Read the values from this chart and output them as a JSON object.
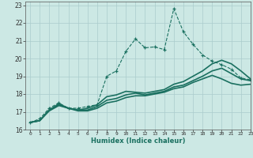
{
  "xlabel": "Humidex (Indice chaleur)",
  "ylabel": "",
  "xlim": [
    -0.5,
    23
  ],
  "ylim": [
    16,
    23.2
  ],
  "yticks": [
    16,
    17,
    18,
    19,
    20,
    21,
    22,
    23
  ],
  "xticks": [
    0,
    1,
    2,
    3,
    4,
    5,
    6,
    7,
    8,
    9,
    10,
    11,
    12,
    13,
    14,
    15,
    16,
    17,
    18,
    19,
    20,
    21,
    22,
    23
  ],
  "bg_color": "#cce8e4",
  "grid_color": "#aacccc",
  "line_color": "#1a7060",
  "lines": [
    {
      "x": [
        0,
        1,
        2,
        3,
        4,
        5,
        6,
        7,
        8,
        9,
        10,
        11,
        12,
        13,
        14,
        15,
        16,
        17,
        18,
        19,
        20,
        21,
        22,
        23
      ],
      "y": [
        16.4,
        16.6,
        17.2,
        17.5,
        17.2,
        17.2,
        17.3,
        17.4,
        19.0,
        19.3,
        20.4,
        21.1,
        20.6,
        20.65,
        20.5,
        22.8,
        21.5,
        20.8,
        20.2,
        19.85,
        19.65,
        19.4,
        18.9,
        18.8
      ],
      "style": "--",
      "marker": "+",
      "lw": 0.8,
      "markersize": 3.5
    },
    {
      "x": [
        0,
        1,
        2,
        3,
        4,
        5,
        6,
        7,
        8,
        9,
        10,
        11,
        12,
        13,
        14,
        15,
        16,
        17,
        18,
        19,
        20,
        21,
        22,
        23
      ],
      "y": [
        16.4,
        16.5,
        17.1,
        17.45,
        17.2,
        17.1,
        17.2,
        17.4,
        17.85,
        17.95,
        18.15,
        18.1,
        18.05,
        18.15,
        18.25,
        18.55,
        18.7,
        19.0,
        19.3,
        19.7,
        19.9,
        19.7,
        19.3,
        18.85
      ],
      "style": "-",
      "marker": null,
      "lw": 1.2,
      "markersize": 0
    },
    {
      "x": [
        0,
        1,
        2,
        3,
        4,
        5,
        6,
        7,
        8,
        9,
        10,
        11,
        12,
        13,
        14,
        15,
        16,
        17,
        18,
        19,
        20,
        21,
        22,
        23
      ],
      "y": [
        16.4,
        16.5,
        17.1,
        17.4,
        17.2,
        17.1,
        17.1,
        17.3,
        17.65,
        17.75,
        17.95,
        18.05,
        17.95,
        18.05,
        18.15,
        18.4,
        18.5,
        18.75,
        19.0,
        19.3,
        19.45,
        19.15,
        18.85,
        18.75
      ],
      "style": "-",
      "marker": null,
      "lw": 1.2,
      "markersize": 0
    },
    {
      "x": [
        0,
        1,
        2,
        3,
        4,
        5,
        6,
        7,
        8,
        9,
        10,
        11,
        12,
        13,
        14,
        15,
        16,
        17,
        18,
        19,
        20,
        21,
        22,
        23
      ],
      "y": [
        16.4,
        16.5,
        17.05,
        17.35,
        17.2,
        17.05,
        17.05,
        17.2,
        17.5,
        17.6,
        17.8,
        17.9,
        17.9,
        18.0,
        18.1,
        18.3,
        18.4,
        18.65,
        18.85,
        19.05,
        18.85,
        18.6,
        18.5,
        18.55
      ],
      "style": "-",
      "marker": null,
      "lw": 1.2,
      "markersize": 0
    }
  ]
}
